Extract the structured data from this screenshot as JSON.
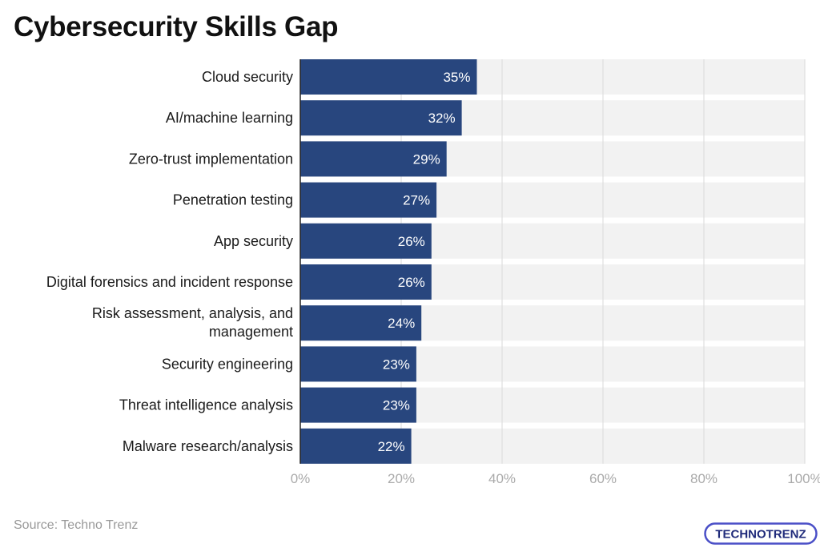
{
  "title": "Cybersecurity Skills Gap",
  "source": "Source: Techno Trenz",
  "logo_text": "TECHNOTRENZ",
  "colors": {
    "bar": "#28467e",
    "bar_label": "#ffffff",
    "band": "#f2f2f2",
    "gridline": "#d9d9d9",
    "axis_line": "#222222",
    "category_text": "#1a1a1a",
    "tick_text": "#aaaaaa",
    "logo_border": "#4a4fc7",
    "logo_fill": "#1f2a7a"
  },
  "chart_data": {
    "type": "bar",
    "orientation": "horizontal",
    "categories": [
      "Cloud security",
      "AI/machine learning",
      "Zero-trust implementation",
      "Penetration testing",
      "App security",
      "Digital forensics and incident response",
      "Risk assessment, analysis, and management",
      "Security engineering",
      "Threat intelligence analysis",
      "Malware research/analysis"
    ],
    "values": [
      35,
      32,
      29,
      27,
      26,
      26,
      24,
      23,
      23,
      22
    ],
    "value_labels": [
      "35%",
      "32%",
      "29%",
      "27%",
      "26%",
      "26%",
      "24%",
      "23%",
      "23%",
      "22%"
    ],
    "xlim": [
      0,
      100
    ],
    "xticks": [
      0,
      20,
      40,
      60,
      80,
      100
    ],
    "xtick_labels": [
      "0%",
      "20%",
      "40%",
      "60%",
      "80%",
      "100%"
    ],
    "grid": true,
    "legend": "none"
  }
}
